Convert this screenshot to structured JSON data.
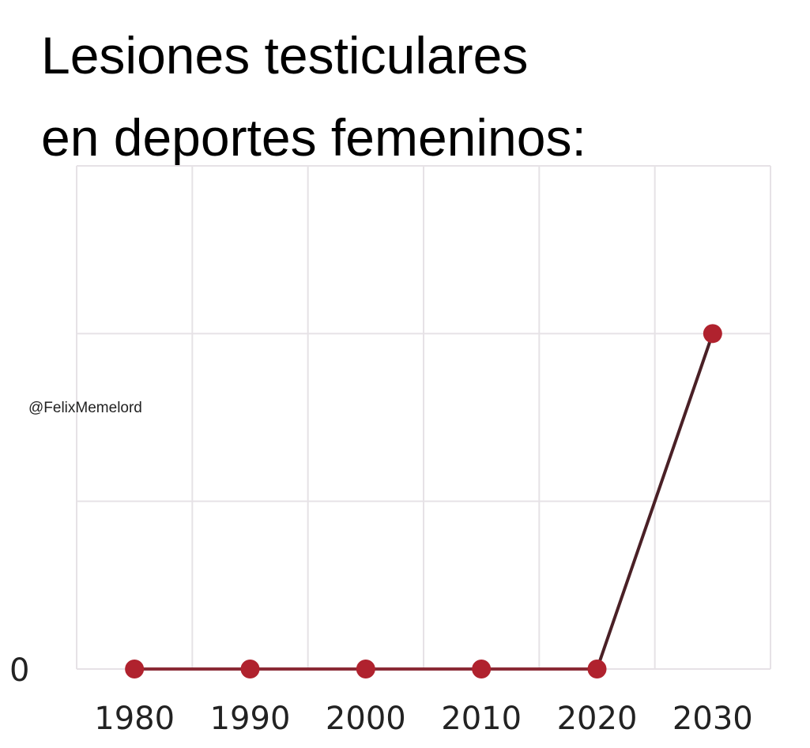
{
  "title_lines": [
    "Lesiones testiculares",
    "en deportes femeninos:"
  ],
  "watermark": "@FelixMemelord",
  "chart_data": {
    "type": "line",
    "title": "Lesiones testiculares en deportes femeninos:",
    "categories": [
      "1980",
      "1990",
      "2000",
      "2010",
      "2020",
      "2030"
    ],
    "values": [
      0,
      0,
      0,
      0,
      0,
      2
    ],
    "ylim": [
      0,
      3
    ],
    "y_tick_labels": [
      "0"
    ],
    "xlabel": "",
    "ylabel": "",
    "grid": true,
    "colors": {
      "marker": "#b0222e",
      "line_flat": "#8a2a35",
      "line_rise": "#4a2026",
      "grid": "#e6e2e6"
    }
  }
}
